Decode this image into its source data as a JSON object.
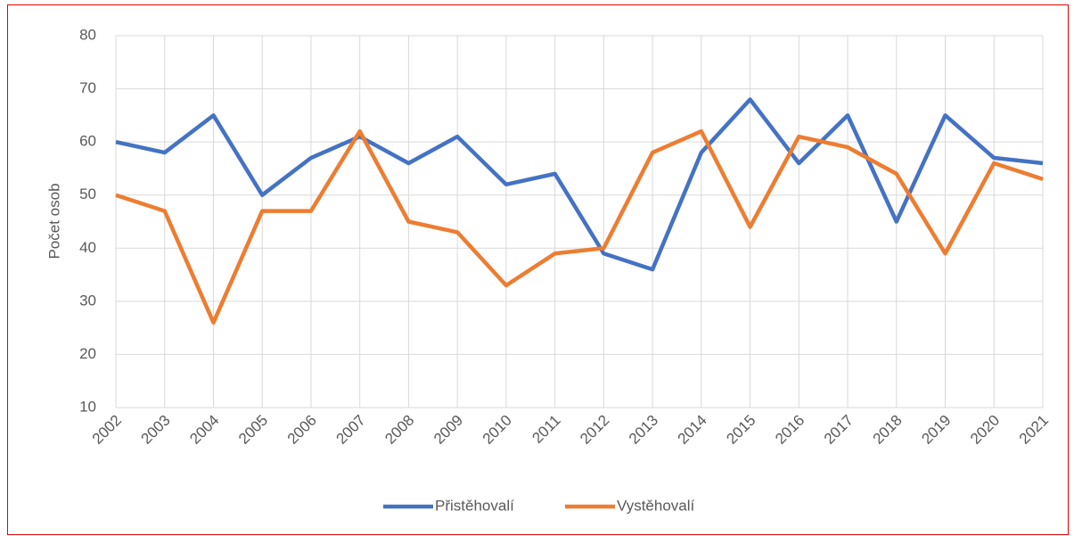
{
  "chart_data": {
    "type": "line",
    "y_label": "Počet osob",
    "categories": [
      "2002",
      "2003",
      "2004",
      "2005",
      "2006",
      "2007",
      "2008",
      "2009",
      "2010",
      "2011",
      "2012",
      "2013",
      "2014",
      "2015",
      "2016",
      "2017",
      "2018",
      "2019",
      "2020",
      "2021"
    ],
    "series": [
      {
        "name": "Přistěhovalí",
        "color": "#4472c4",
        "values": [
          60,
          58,
          65,
          50,
          57,
          61,
          56,
          61,
          52,
          54,
          39,
          36,
          58,
          68,
          56,
          65,
          45,
          65,
          57,
          56
        ]
      },
      {
        "name": "Vystěhovalí",
        "color": "#ed7d31",
        "values": [
          50,
          47,
          26,
          47,
          47,
          62,
          45,
          43,
          33,
          39,
          40,
          58,
          62,
          44,
          61,
          59,
          54,
          39,
          56,
          53
        ]
      }
    ],
    "ylim": [
      10,
      80
    ],
    "yticks": [
      10,
      20,
      30,
      40,
      50,
      60,
      70,
      80
    ],
    "grid": true,
    "legend": "bottom"
  }
}
